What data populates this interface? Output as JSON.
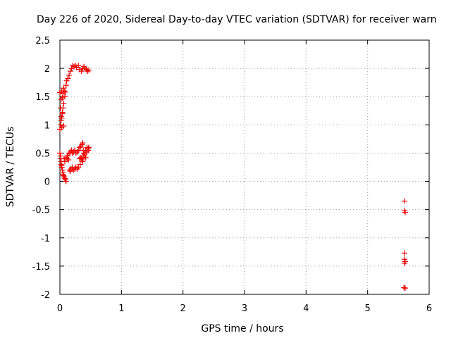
{
  "chart_data": {
    "type": "scatter",
    "title": "Day 226 of 2020, Sidereal Day-to-day VTEC variation (SDTVAR) for receiver warn",
    "xlabel": "GPS time / hours",
    "ylabel": "SDTVAR / TECUs",
    "xlim": [
      0,
      6
    ],
    "ylim": [
      -2,
      2.5
    ],
    "xticks": [
      "0",
      "1",
      "2",
      "3",
      "4",
      "5",
      "6"
    ],
    "yticks": [
      "2.5",
      "2",
      "1.5",
      "1",
      "0.5",
      "0",
      "-0.5",
      "-1",
      "-1.5",
      "-2"
    ],
    "grid": true,
    "marker": "+",
    "color": "#ee0000",
    "series": [
      {
        "x": [
          0.0,
          0.01,
          0.02,
          0.02,
          0.03,
          0.04,
          0.04,
          0.05,
          0.06,
          0.07,
          0.08,
          0.09,
          0.1,
          0.11,
          0.13,
          0.15,
          0.17,
          0.19,
          0.21,
          0.23,
          0.25,
          0.27,
          0.3,
          0.32,
          0.35,
          0.37,
          0.39,
          0.41,
          0.43,
          0.45,
          0.47,
          0.0,
          0.01,
          0.01,
          0.02,
          0.02,
          0.03,
          0.03,
          0.04,
          0.05,
          0.05,
          0.06,
          0.07,
          0.08,
          0.09,
          0.1,
          0.12,
          0.13,
          0.15,
          0.17,
          0.19,
          0.2,
          0.22,
          0.24,
          0.26,
          0.28,
          0.3,
          0.32,
          0.34,
          0.36,
          0.37,
          0.38,
          0.39,
          0.4,
          0.42,
          0.44,
          0.46,
          0.47,
          0.35,
          0.33,
          0.37,
          0.0,
          0.01,
          0.02,
          0.03,
          0.04,
          0.05,
          0.06,
          0.07,
          0.08,
          0.1,
          0.12,
          0.14,
          0.16,
          0.17,
          0.18,
          0.2,
          0.22,
          0.24,
          0.26,
          0.28,
          0.3,
          0.32,
          0.34,
          0.36,
          0.38,
          0.4,
          0.42,
          0.44,
          0.46,
          0.03,
          0.06,
          5.6,
          5.6,
          5.61,
          5.6,
          5.6,
          5.61,
          5.6,
          5.59,
          5.61
        ],
        "y": [
          1.57,
          1.3,
          1.15,
          1.45,
          1.6,
          1.48,
          1.22,
          1.55,
          1.65,
          1.6,
          1.5,
          1.58,
          1.7,
          1.78,
          1.82,
          1.88,
          1.95,
          2.0,
          2.05,
          2.03,
          2.05,
          2.02,
          2.05,
          1.98,
          1.95,
          2.0,
          2.03,
          2.0,
          1.98,
          1.95,
          1.97,
          0.5,
          0.45,
          0.4,
          0.35,
          0.3,
          0.28,
          0.25,
          0.2,
          0.15,
          0.12,
          0.1,
          0.08,
          0.05,
          0.03,
          0.0,
          0.4,
          0.45,
          0.5,
          0.52,
          0.55,
          0.5,
          0.52,
          0.55,
          0.5,
          0.52,
          0.55,
          0.6,
          0.62,
          0.65,
          0.68,
          0.55,
          0.5,
          0.45,
          0.55,
          0.6,
          0.58,
          0.6,
          0.4,
          0.3,
          0.35,
          0.92,
          1.0,
          1.08,
          1.12,
          1.2,
          1.3,
          1.38,
          0.4,
          0.35,
          0.42,
          0.45,
          0.38,
          0.2,
          0.18,
          0.22,
          0.25,
          0.2,
          0.22,
          0.25,
          0.22,
          0.25,
          0.4,
          0.42,
          0.38,
          0.45,
          0.48,
          0.42,
          0.52,
          0.55,
          0.95,
          0.98,
          -0.35,
          -0.52,
          -0.55,
          -1.27,
          -1.38,
          -1.42,
          -1.45,
          -1.88,
          -1.89
        ]
      }
    ]
  }
}
